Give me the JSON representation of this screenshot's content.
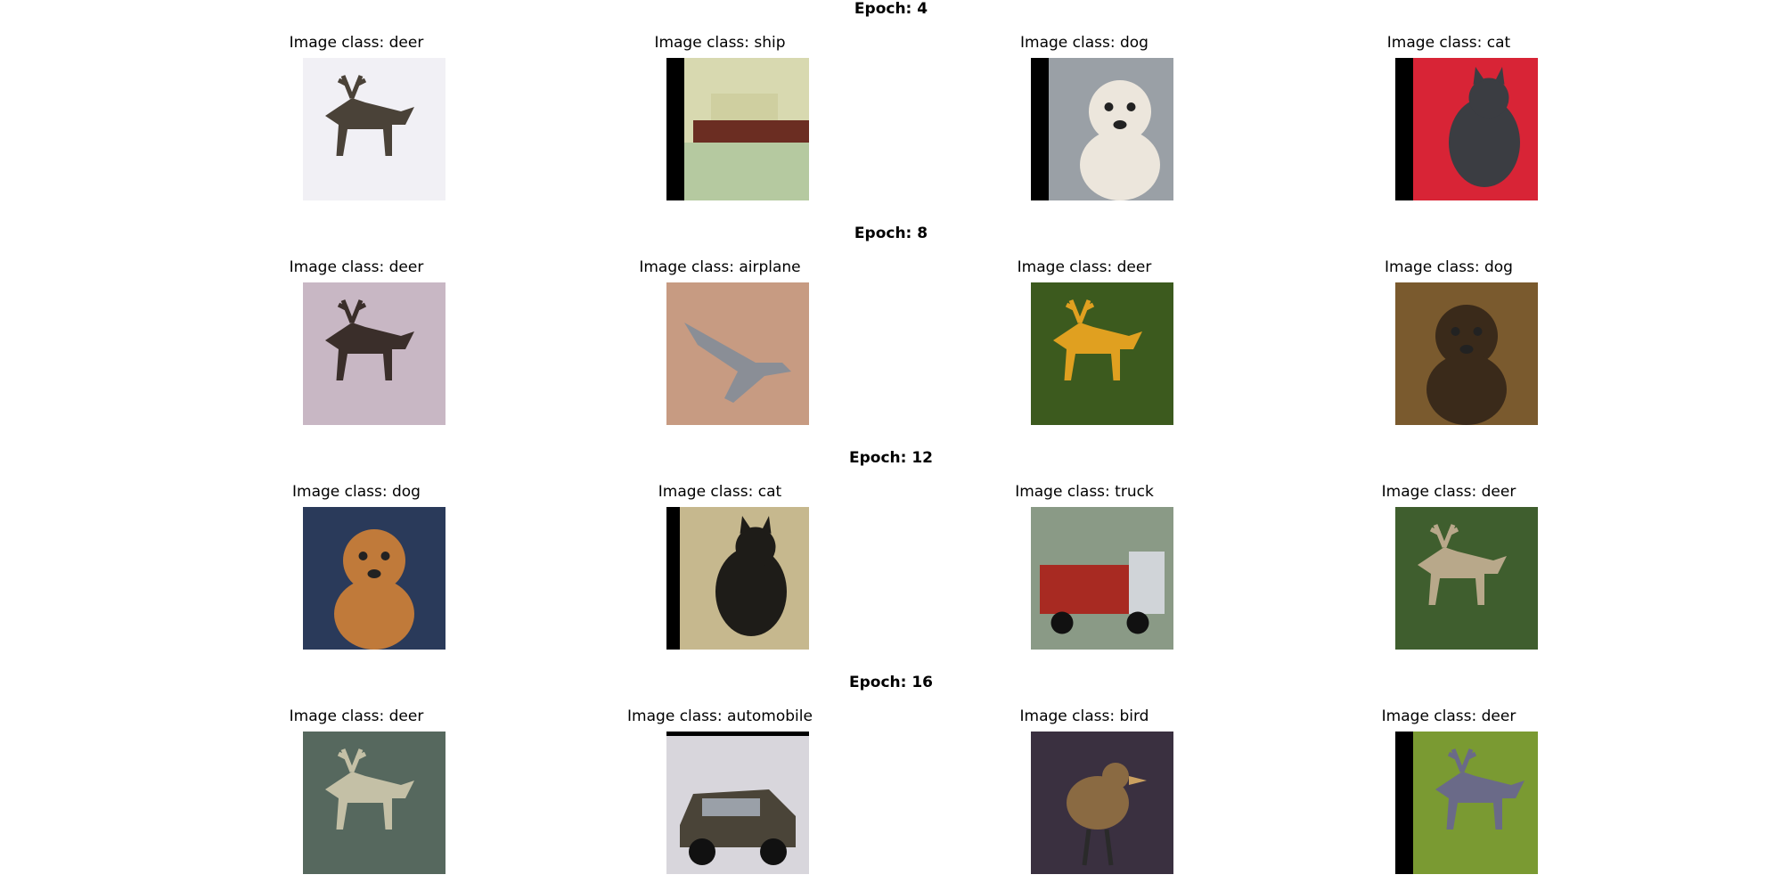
{
  "rows": [
    {
      "title": "Epoch: 4",
      "cells": [
        {
          "label": "Image class: deer",
          "subject": "deer",
          "bg": "#f1f0f5",
          "fg": "#4a4238",
          "shift": "right",
          "thumb_icon": "deer-silhouette-icon"
        },
        {
          "label": "Image class: ship",
          "subject": "ship",
          "bg": "#d8d9b0",
          "fg": "#6b2d22",
          "shift": "left-bottom",
          "thumb_icon": "ship-silhouette-icon"
        },
        {
          "label": "Image class: dog",
          "subject": "dog",
          "bg": "#9aa0a6",
          "fg": "#ece6dc",
          "shift": "left-bottom",
          "thumb_icon": "dog-silhouette-icon"
        },
        {
          "label": "Image class: cat",
          "subject": "cat",
          "bg": "#d82436",
          "fg": "#3b3d42",
          "shift": "left-bottom",
          "thumb_icon": "cat-silhouette-icon"
        }
      ]
    },
    {
      "title": "Epoch: 8",
      "cells": [
        {
          "label": "Image class: deer",
          "subject": "deer",
          "bg": "#c8b7c4",
          "fg": "#3a2e2a",
          "shift": "right-bottom",
          "thumb_icon": "deer-silhouette-icon"
        },
        {
          "label": "Image class: airplane",
          "subject": "airplane",
          "bg": "#c79b82",
          "fg": "#8a8e96",
          "shift": "right-bottom",
          "thumb_icon": "airplane-silhouette-icon"
        },
        {
          "label": "Image class: deer",
          "subject": "deer",
          "bg": "#3c5a1e",
          "fg": "#e0a020",
          "shift": "bottom",
          "thumb_icon": "deer-silhouette-icon"
        },
        {
          "label": "Image class: dog",
          "subject": "dog",
          "bg": "#7a5a2e",
          "fg": "#3a2a1a",
          "shift": "right",
          "thumb_icon": "dog-silhouette-icon"
        }
      ]
    },
    {
      "title": "Epoch: 12",
      "cells": [
        {
          "label": "Image class: dog",
          "subject": "dog",
          "bg": "#2a3a5a",
          "fg": "#c07a3a",
          "shift": "none",
          "thumb_icon": "dog-silhouette-icon"
        },
        {
          "label": "Image class: cat",
          "subject": "cat",
          "bg": "#c6b88e",
          "fg": "#1e1c18",
          "shift": "left",
          "thumb_icon": "cat-silhouette-icon"
        },
        {
          "label": "Image class: truck",
          "subject": "truck",
          "bg": "#8a9a86",
          "fg": "#a82a22",
          "shift": "right",
          "thumb_icon": "truck-silhouette-icon"
        },
        {
          "label": "Image class: deer",
          "subject": "deer",
          "bg": "#3f5e2e",
          "fg": "#b8a88a",
          "shift": "bottom",
          "thumb_icon": "deer-silhouette-icon"
        }
      ]
    },
    {
      "title": "Epoch: 16",
      "cells": [
        {
          "label": "Image class: deer",
          "subject": "deer",
          "bg": "#56685e",
          "fg": "#c4c0a6",
          "shift": "right-bottom",
          "thumb_icon": "deer-silhouette-icon"
        },
        {
          "label": "Image class: automobile",
          "subject": "automobile",
          "bg": "#d8d6dc",
          "fg": "#4a4438",
          "shift": "top",
          "thumb_icon": "car-silhouette-icon"
        },
        {
          "label": "Image class: bird",
          "subject": "bird",
          "bg": "#3a3040",
          "fg": "#8a6a42",
          "shift": "right",
          "thumb_icon": "bird-silhouette-icon"
        },
        {
          "label": "Image class: deer",
          "subject": "deer",
          "bg": "#7a9a32",
          "fg": "#6a6a88",
          "shift": "left-bottom",
          "thumb_icon": "deer-silhouette-icon"
        }
      ]
    }
  ]
}
